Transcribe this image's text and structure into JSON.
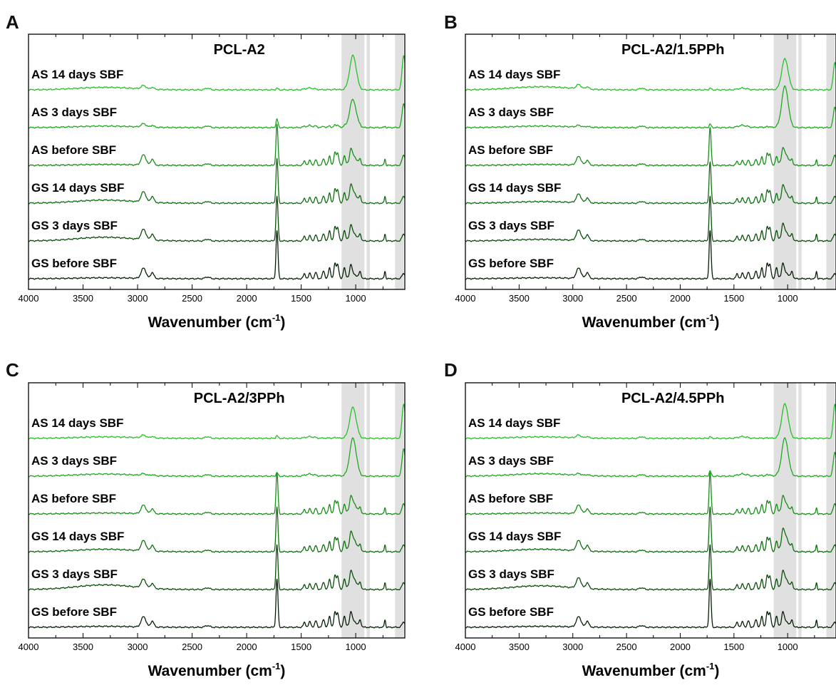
{
  "colors": {
    "traces": [
      "#27c227",
      "#1faa1f",
      "#168f16",
      "#0e6f0e",
      "#0a4d0a",
      "#061f06"
    ],
    "band": "#d6d6d6"
  },
  "panels": [
    {
      "letter": "A",
      "title": "PCL-A2"
    },
    {
      "letter": "B",
      "title": "PCL-A2/1.5PPh"
    },
    {
      "letter": "C",
      "title": "PCL-A2/3PPh"
    },
    {
      "letter": "D",
      "title": "PCL-A2/4.5PPh"
    }
  ],
  "chart_data": {
    "type": "line",
    "xlabel": "Wavenumber (cm",
    "xlabel_sup": "-1",
    "xlabel_close": ")",
    "xlim": [
      4000,
      550
    ],
    "x_reversed": true,
    "xticks": [
      "4000",
      "3500",
      "3000",
      "2500",
      "2000",
      "1500",
      "1000"
    ],
    "xtick_values": [
      4000,
      3500,
      3000,
      2500,
      2000,
      1500,
      1000
    ],
    "y_axis": "stacked spectra, arbitrary units, no tick labels",
    "highlight_bands": [
      [
        1130,
        920
      ],
      [
        900,
        870
      ],
      [
        640,
        560
      ]
    ],
    "series_names": [
      "AS 14 days SBF",
      "AS 3 days SBF",
      "AS before SBF",
      "GS 14 days SBF",
      "GS 3 days SBF",
      "GS before SBF"
    ],
    "panels": [
      {
        "panel": "A",
        "series": [
          {
            "name": "AS 14 days SBF",
            "carbonyl": 0.05,
            "phosphate": 1.0,
            "hydroxyl": 0.08,
            "ch": 0.1,
            "edge": 1.0
          },
          {
            "name": "AS 3 days SBF",
            "carbonyl": 0.25,
            "phosphate": 0.8,
            "hydroxyl": 0.05,
            "ch": 0.1,
            "edge": 0.7
          },
          {
            "name": "AS before SBF",
            "carbonyl": 1.2,
            "phosphate": 0.3,
            "hydroxyl": 0.03,
            "ch": 0.3,
            "edge": 0.3
          },
          {
            "name": "GS 14 days SBF",
            "carbonyl": 1.3,
            "phosphate": 0.35,
            "hydroxyl": 0.1,
            "ch": 0.3,
            "edge": 0.2
          },
          {
            "name": "GS 3 days SBF",
            "carbonyl": 1.3,
            "phosphate": 0.25,
            "hydroxyl": 0.12,
            "ch": 0.3,
            "edge": 0.2
          },
          {
            "name": "GS before SBF",
            "carbonyl": 1.4,
            "phosphate": 0.15,
            "hydroxyl": 0.03,
            "ch": 0.3,
            "edge": 0.15
          }
        ]
      },
      {
        "panel": "B",
        "series": [
          {
            "name": "AS 14 days SBF",
            "carbonyl": 0.05,
            "phosphate": 0.9,
            "hydroxyl": 0.1,
            "ch": 0.12,
            "edge": 0.8
          },
          {
            "name": "AS 3 days SBF",
            "carbonyl": 0.1,
            "phosphate": 1.2,
            "hydroxyl": 0.05,
            "ch": 0.05,
            "edge": 0.6
          },
          {
            "name": "AS before SBF",
            "carbonyl": 1.1,
            "phosphate": 0.35,
            "hydroxyl": 0.03,
            "ch": 0.25,
            "edge": 0.3
          },
          {
            "name": "GS 14 days SBF",
            "carbonyl": 1.2,
            "phosphate": 0.35,
            "hydroxyl": 0.05,
            "ch": 0.25,
            "edge": 0.2
          },
          {
            "name": "GS 3 days SBF",
            "carbonyl": 1.3,
            "phosphate": 0.3,
            "hydroxyl": 0.05,
            "ch": 0.3,
            "edge": 0.2
          },
          {
            "name": "GS before SBF",
            "carbonyl": 1.4,
            "phosphate": 0.2,
            "hydroxyl": 0.03,
            "ch": 0.3,
            "edge": 0.15
          }
        ]
      },
      {
        "panel": "C",
        "series": [
          {
            "name": "AS 14 days SBF",
            "carbonyl": 0.08,
            "phosphate": 0.9,
            "hydroxyl": 0.05,
            "ch": 0.08,
            "edge": 1.0
          },
          {
            "name": "AS 3 days SBF",
            "carbonyl": 0.1,
            "phosphate": 1.1,
            "hydroxyl": 0.07,
            "ch": 0.05,
            "edge": 0.8
          },
          {
            "name": "AS before SBF",
            "carbonyl": 1.2,
            "phosphate": 0.35,
            "hydroxyl": 0.03,
            "ch": 0.25,
            "edge": 0.3
          },
          {
            "name": "GS 14 days SBF",
            "carbonyl": 1.3,
            "phosphate": 0.4,
            "hydroxyl": 0.08,
            "ch": 0.3,
            "edge": 0.2
          },
          {
            "name": "GS 3 days SBF",
            "carbonyl": 1.3,
            "phosphate": 0.35,
            "hydroxyl": 0.15,
            "ch": 0.25,
            "edge": 0.2
          },
          {
            "name": "GS before SBF",
            "carbonyl": 1.4,
            "phosphate": 0.2,
            "hydroxyl": 0.03,
            "ch": 0.3,
            "edge": 0.15
          }
        ]
      },
      {
        "panel": "D",
        "series": [
          {
            "name": "AS 14 days SBF",
            "carbonyl": 0.05,
            "phosphate": 1.0,
            "hydroxyl": 0.05,
            "ch": 0.08,
            "edge": 1.0
          },
          {
            "name": "AS 3 days SBF",
            "carbonyl": 0.15,
            "phosphate": 1.1,
            "hydroxyl": 0.08,
            "ch": 0.05,
            "edge": 0.7
          },
          {
            "name": "AS before SBF",
            "carbonyl": 1.2,
            "phosphate": 0.35,
            "hydroxyl": 0.03,
            "ch": 0.25,
            "edge": 0.3
          },
          {
            "name": "GS 14 days SBF",
            "carbonyl": 1.3,
            "phosphate": 0.5,
            "hydroxyl": 0.08,
            "ch": 0.3,
            "edge": 0.2
          },
          {
            "name": "GS 3 days SBF",
            "carbonyl": 1.3,
            "phosphate": 0.35,
            "hydroxyl": 0.12,
            "ch": 0.3,
            "edge": 0.2
          },
          {
            "name": "GS before SBF",
            "carbonyl": 1.4,
            "phosphate": 0.2,
            "hydroxyl": 0.03,
            "ch": 0.3,
            "edge": 0.15
          }
        ]
      }
    ]
  }
}
